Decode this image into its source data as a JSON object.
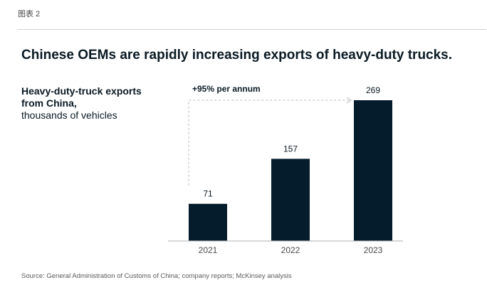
{
  "figure_label": "图表 2",
  "title": "Chinese OEMs are rapidly increasing exports of heavy-duty trucks.",
  "subtitle_bold": "Heavy-duty-truck exports from China,",
  "subtitle_light": "thousands of vehicles",
  "annotation": "+95% per annum",
  "source": "Source: General Administration of Customs of China; company reports; McKinsey analysis",
  "colors": {
    "bar": "#051c2c",
    "axis": "#b0b0b0",
    "arrow": "#b8b8b8"
  },
  "chart_data": {
    "type": "bar",
    "categories": [
      "2021",
      "2022",
      "2023"
    ],
    "values": [
      71,
      157,
      269
    ],
    "data_labels": [
      "71",
      "157",
      "269"
    ],
    "title": "Chinese OEMs are rapidly increasing exports of heavy-duty trucks.",
    "ylabel": "Heavy-duty-truck exports from China, thousands of vehicles",
    "xlabel": "",
    "ylim": [
      0,
      269
    ],
    "grid": false,
    "annotation": "+95% per annum"
  }
}
